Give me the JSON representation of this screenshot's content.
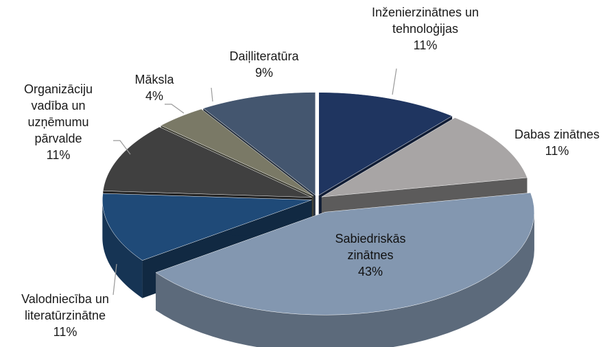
{
  "chart_data": {
    "type": "pie",
    "categories": [
      "Inženierzinātnes un tehnoloģijas",
      "Dabas zinātnes",
      "Sabiedriskās zinātnes",
      "Valodniecība un literatūrzinātne",
      "Organizāciju vadība un uzņēmumu pārvalde",
      "Māksla",
      "Daiļliteratūra"
    ],
    "values": [
      11,
      11,
      43,
      11,
      11,
      4,
      9
    ],
    "value_labels": [
      "11%",
      "11%",
      "43%",
      "11%",
      "11%",
      "4%",
      "9%"
    ],
    "colors": [
      "#1f3560",
      "#a8a5a5",
      "#8397b0",
      "#1f4a78",
      "#404040",
      "#7a7966",
      "#44566f"
    ]
  }
}
